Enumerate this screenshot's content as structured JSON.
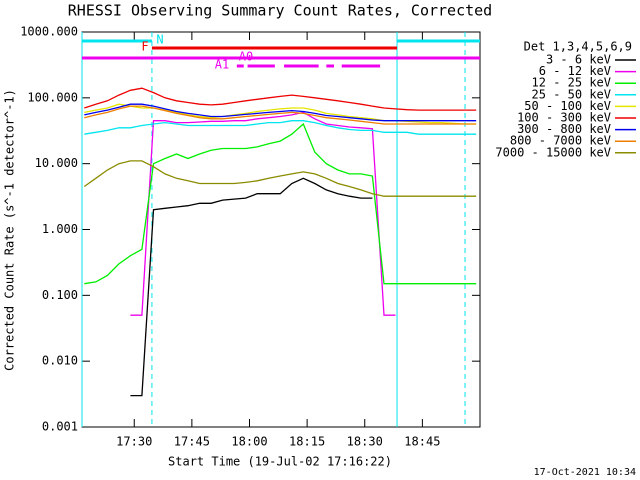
{
  "chart_data": {
    "type": "line",
    "title": "RHESSI Observing Summary Count Rates, Corrected",
    "x_label": "Start Time (19-Jul-02 17:16:22)",
    "y_label": "Corrected Count Rate (s^-1 detector^-1)",
    "footer": "17-Oct-2021 10:34",
    "legend_title": "Det 1,3,4,5,6,9",
    "legend": "right",
    "log_y": true,
    "xlim": [
      16.4,
      120
    ],
    "xticks": [
      {
        "value": 30,
        "label": "17:30"
      },
      {
        "value": 45,
        "label": "17:45"
      },
      {
        "value": 60,
        "label": "18:00"
      },
      {
        "value": 75,
        "label": "18:15"
      },
      {
        "value": 90,
        "label": "18:30"
      },
      {
        "value": 105,
        "label": "18:45"
      }
    ],
    "ylim": [
      0.001,
      1000
    ],
    "yticks": [
      {
        "value": 1000,
        "label": "1000.000"
      },
      {
        "value": 100,
        "label": "100.000"
      },
      {
        "value": 10,
        "label": "10.000"
      },
      {
        "value": 1,
        "label": "1.000"
      },
      {
        "value": 0.1,
        "label": "0.100"
      },
      {
        "value": 0.01,
        "label": "0.010"
      },
      {
        "value": 0.001,
        "label": "0.001"
      }
    ],
    "vlines": [
      {
        "x": 16.4,
        "color": "#00e5ee",
        "dashed": false
      },
      {
        "x": 34.6,
        "color": "#00e5ee",
        "dashed": true
      },
      {
        "x": 98.4,
        "color": "#00e5ee",
        "dashed": false
      },
      {
        "x": 116.1,
        "color": "#00e5ee",
        "dashed": true
      }
    ],
    "flags": [
      {
        "label": "N",
        "color": "#00e5ee",
        "intervals": [
          [
            16.4,
            34.6
          ],
          [
            98.4,
            120
          ]
        ]
      },
      {
        "label": "F",
        "color": "#ee0000",
        "intervals": [
          [
            34.6,
            98.4
          ]
        ]
      },
      {
        "label": "A0",
        "color": "#ee00ee",
        "intervals": [
          [
            16.4,
            120
          ]
        ]
      },
      {
        "label": "A1",
        "color": "#ee00ee",
        "intervals": [
          [
            56.7,
            58.5
          ],
          [
            59.5,
            66.6
          ],
          [
            69,
            78
          ],
          [
            80,
            82
          ],
          [
            84,
            94
          ]
        ]
      }
    ],
    "x": [
      17,
      20,
      23,
      26,
      29,
      32,
      35,
      38,
      41,
      44,
      47,
      50,
      53,
      56,
      59,
      62,
      65,
      68,
      71,
      74,
      77,
      80,
      83,
      86,
      89,
      92,
      95,
      98,
      101,
      104,
      107,
      110,
      113,
      116,
      119
    ],
    "series": [
      {
        "name": "3 - 6 keV",
        "color": "#000000",
        "values": [
          null,
          null,
          null,
          null,
          0.003,
          0.003,
          2,
          2.1,
          2.2,
          2.3,
          2.5,
          2.5,
          2.8,
          2.9,
          3,
          3.5,
          3.5,
          3.5,
          5,
          6,
          5,
          4,
          3.5,
          3.2,
          3,
          3,
          null,
          null,
          null,
          null,
          null,
          null,
          null,
          null,
          null
        ]
      },
      {
        "name": "6 - 12 keV",
        "color": "#ee00ee",
        "values": [
          null,
          null,
          null,
          null,
          0.05,
          0.05,
          45,
          45,
          42,
          42,
          43,
          44,
          44,
          45,
          45,
          48,
          50,
          52,
          55,
          60,
          48,
          40,
          38,
          36,
          35,
          34,
          0.05,
          0.05,
          null,
          null,
          null,
          null,
          null,
          null,
          null
        ]
      },
      {
        "name": "12 - 25 keV",
        "color": "#00ee00",
        "values": [
          0.15,
          0.16,
          0.2,
          0.3,
          0.4,
          0.5,
          10,
          12,
          14,
          12,
          14,
          16,
          17,
          17,
          17,
          18,
          20,
          22,
          28,
          40,
          15,
          10,
          8,
          7,
          7,
          6.5,
          0.15,
          0.15,
          0.15,
          0.15,
          0.15,
          0.15,
          0.15,
          0.15,
          0.15
        ]
      },
      {
        "name": "25 - 50 keV",
        "color": "#00e5ee",
        "values": [
          28,
          30,
          32,
          35,
          35,
          38,
          40,
          42,
          40,
          38,
          38,
          38,
          38,
          38,
          38,
          40,
          42,
          42,
          45,
          45,
          42,
          38,
          35,
          33,
          32,
          32,
          30,
          30,
          30,
          28,
          28,
          28,
          28,
          28,
          28
        ]
      },
      {
        "name": "50 - 100 keV",
        "color": "#e5e500",
        "values": [
          60,
          65,
          70,
          80,
          75,
          70,
          70,
          65,
          60,
          55,
          52,
          50,
          52,
          55,
          58,
          62,
          65,
          68,
          70,
          70,
          65,
          58,
          55,
          52,
          50,
          48,
          45,
          45,
          44,
          43,
          42,
          42,
          41,
          40,
          40
        ]
      },
      {
        "name": "100 - 300 keV",
        "color": "#ee0000",
        "values": [
          70,
          80,
          90,
          110,
          130,
          140,
          120,
          100,
          90,
          85,
          80,
          78,
          80,
          85,
          90,
          95,
          100,
          105,
          110,
          105,
          100,
          95,
          90,
          85,
          80,
          75,
          70,
          68,
          66,
          65,
          65,
          65,
          65,
          65,
          65
        ]
      },
      {
        "name": "300 - 800 keV",
        "color": "#0000ee",
        "values": [
          55,
          60,
          65,
          72,
          80,
          80,
          75,
          68,
          62,
          58,
          55,
          52,
          52,
          54,
          56,
          58,
          60,
          62,
          64,
          62,
          58,
          54,
          52,
          50,
          48,
          46,
          45,
          45,
          45,
          45,
          45,
          45,
          45,
          45,
          45
        ]
      },
      {
        "name": "800 - 7000 keV",
        "color": "#ee7f00",
        "values": [
          50,
          55,
          60,
          68,
          75,
          75,
          70,
          64,
          58,
          54,
          50,
          48,
          48,
          50,
          52,
          54,
          56,
          58,
          60,
          58,
          54,
          50,
          48,
          46,
          44,
          42,
          40,
          40,
          40,
          40,
          40,
          40,
          40,
          40,
          40
        ]
      },
      {
        "name": "7000 - 15000 keV",
        "color": "#8b8b00",
        "values": [
          4.5,
          6,
          8,
          10,
          11,
          11,
          9,
          7,
          6,
          5.5,
          5,
          5,
          5,
          5,
          5.2,
          5.5,
          6,
          6.5,
          7,
          7.5,
          7,
          6,
          5,
          4.5,
          4,
          3.5,
          3.2,
          3.2,
          3.2,
          3.2,
          3.2,
          3.2,
          3.2,
          3.2,
          3.2
        ]
      }
    ]
  }
}
